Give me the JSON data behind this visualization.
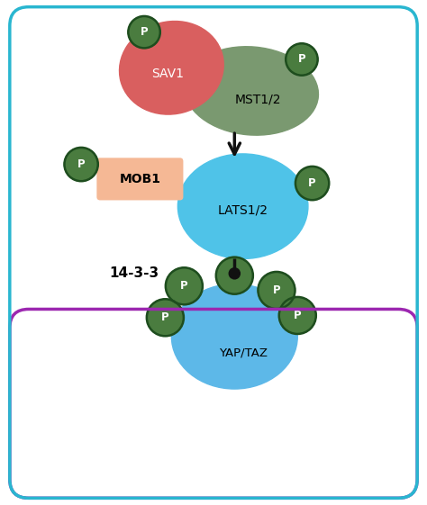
{
  "bg_color": "#ffffff",
  "border_color": "#29b6d0",
  "border_color_left_bottom": "#9c27b0",
  "sav1_color": "#d95f5f",
  "mst_color": "#7a9970",
  "mob1_color": "#f5b895",
  "lats_color": "#4fc3e8",
  "yap_color": "#5db8e8",
  "p_fill_color": "#4a7c3f",
  "p_edge_color": "#1e4d1e",
  "p_text_color": "#ffffff",
  "arrow_color": "#111111",
  "text_color": "#111111",
  "sav1_label": "SAV1",
  "mst_label": "MST1/2",
  "mob1_label": "MOB1",
  "lats_label": "LATS1/2",
  "yap_label": "YAP/TAZ",
  "label_1433": "14-3-3",
  "p_label": "P",
  "figw": 4.74,
  "figh": 5.61,
  "dpi": 100
}
